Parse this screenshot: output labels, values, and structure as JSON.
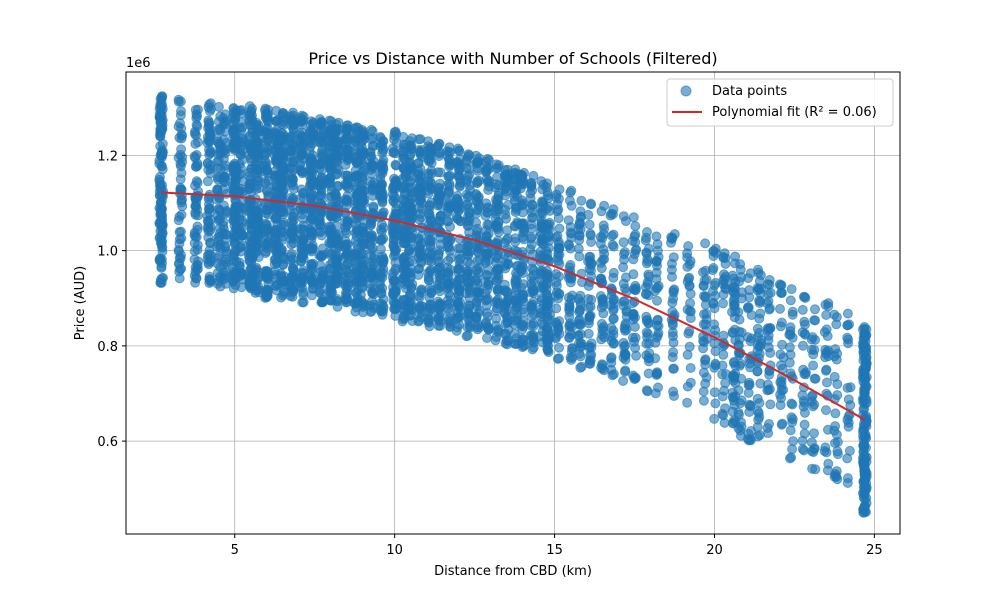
{
  "chart_data": {
    "type": "scatter",
    "title": "Price vs Distance with Number of Schools (Filtered)",
    "xlabel": "Distance from CBD (km)",
    "ylabel": "Price (AUD)",
    "y_offset_label": "1e6",
    "xlim": [
      1.6,
      25.8
    ],
    "ylim": [
      0.405,
      1.375
    ],
    "x_ticks": [
      5,
      10,
      15,
      20,
      25
    ],
    "y_ticks": [
      0.6,
      0.8,
      1.0,
      1.2
    ],
    "x_tick_labels": [
      "5",
      "10",
      "15",
      "20",
      "25"
    ],
    "y_tick_labels": [
      "0.6",
      "0.8",
      "1.0",
      "1.2"
    ],
    "grid": true,
    "legend_position": "top-right",
    "series": [
      {
        "name": "Data points",
        "kind": "scatter",
        "color": "#1f77b4",
        "x_columns": [
          2.7,
          3.3,
          3.8,
          4.2,
          4.5,
          4.7,
          5.0,
          5.2,
          5.5,
          5.7,
          6.0,
          6.3,
          6.5,
          6.8,
          7.1,
          7.4,
          7.7,
          8.0,
          8.2,
          8.5,
          8.8,
          9.0,
          9.3,
          9.6,
          10.0,
          10.3,
          10.5,
          10.8,
          11.1,
          11.4,
          11.7,
          12.0,
          12.3,
          12.6,
          12.9,
          13.2,
          13.5,
          13.8,
          14.0,
          14.3,
          14.6,
          14.8,
          15.1,
          15.5,
          15.8,
          16.1,
          16.5,
          16.8,
          17.2,
          17.5,
          17.9,
          18.2,
          18.7,
          19.2,
          19.7,
          20.0,
          20.3,
          20.6,
          20.8,
          21.1,
          21.4,
          21.7,
          22.1,
          22.4,
          22.8,
          23.1,
          23.5,
          23.8,
          24.2,
          24.7
        ],
        "y_ranges": [
          [
            0.93,
            1.325
          ],
          [
            0.94,
            1.32
          ],
          [
            0.93,
            1.31
          ],
          [
            0.93,
            1.31
          ],
          [
            0.92,
            1.315
          ],
          [
            0.93,
            1.31
          ],
          [
            0.92,
            1.31
          ],
          [
            0.92,
            1.31
          ],
          [
            0.92,
            1.305
          ],
          [
            0.91,
            1.3
          ],
          [
            0.9,
            1.3
          ],
          [
            0.91,
            1.295
          ],
          [
            0.9,
            1.29
          ],
          [
            0.9,
            1.29
          ],
          [
            0.89,
            1.285
          ],
          [
            0.9,
            1.28
          ],
          [
            0.89,
            1.28
          ],
          [
            0.89,
            1.275
          ],
          [
            0.88,
            1.27
          ],
          [
            0.88,
            1.265
          ],
          [
            0.87,
            1.26
          ],
          [
            0.87,
            1.26
          ],
          [
            0.87,
            1.255
          ],
          [
            0.86,
            1.25
          ],
          [
            0.86,
            1.25
          ],
          [
            0.85,
            1.245
          ],
          [
            0.85,
            1.24
          ],
          [
            0.85,
            1.235
          ],
          [
            0.84,
            1.23
          ],
          [
            0.84,
            1.225
          ],
          [
            0.83,
            1.22
          ],
          [
            0.83,
            1.215
          ],
          [
            0.82,
            1.21
          ],
          [
            0.82,
            1.2
          ],
          [
            0.81,
            1.195
          ],
          [
            0.81,
            1.185
          ],
          [
            0.8,
            1.18
          ],
          [
            0.8,
            1.175
          ],
          [
            0.79,
            1.165
          ],
          [
            0.79,
            1.16
          ],
          [
            0.78,
            1.15
          ],
          [
            0.78,
            1.145
          ],
          [
            0.77,
            1.14
          ],
          [
            0.76,
            1.13
          ],
          [
            0.75,
            1.12
          ],
          [
            0.75,
            1.11
          ],
          [
            0.74,
            1.1
          ],
          [
            0.73,
            1.09
          ],
          [
            0.72,
            1.08
          ],
          [
            0.71,
            1.07
          ],
          [
            0.7,
            1.06
          ],
          [
            0.69,
            1.05
          ],
          [
            0.68,
            1.04
          ],
          [
            0.67,
            1.03
          ],
          [
            0.65,
            1.02
          ],
          [
            0.64,
            1.01
          ],
          [
            0.63,
            1.0
          ],
          [
            0.62,
            0.99
          ],
          [
            0.61,
            0.98
          ],
          [
            0.6,
            0.97
          ],
          [
            0.59,
            0.96
          ],
          [
            0.58,
            0.95
          ],
          [
            0.57,
            0.935
          ],
          [
            0.56,
            0.92
          ],
          [
            0.55,
            0.91
          ],
          [
            0.53,
            0.9
          ],
          [
            0.53,
            0.89
          ],
          [
            0.52,
            0.88
          ],
          [
            0.51,
            0.87
          ],
          [
            0.445,
            0.845
          ]
        ],
        "points_per_column": [
          130,
          50,
          60,
          70,
          55,
          50,
          110,
          60,
          100,
          90,
          100,
          90,
          100,
          95,
          90,
          100,
          90,
          95,
          90,
          90,
          85,
          90,
          80,
          80,
          90,
          80,
          80,
          75,
          80,
          75,
          70,
          75,
          70,
          70,
          65,
          70,
          65,
          60,
          60,
          55,
          55,
          70,
          45,
          45,
          40,
          40,
          40,
          35,
          35,
          35,
          35,
          30,
          30,
          25,
          30,
          25,
          30,
          45,
          30,
          30,
          40,
          30,
          25,
          25,
          25,
          25,
          25,
          25,
          20,
          170
        ]
      },
      {
        "name": "Polynomial fit (R² = 0.06)",
        "kind": "line",
        "color": "#d62728",
        "x": [
          2.7,
          5.0,
          7.5,
          10.0,
          12.5,
          15.0,
          17.5,
          20.0,
          22.5,
          24.7
        ],
        "y": [
          1.122,
          1.114,
          1.094,
          1.063,
          1.022,
          0.967,
          0.898,
          0.818,
          0.728,
          0.645
        ]
      }
    ]
  }
}
